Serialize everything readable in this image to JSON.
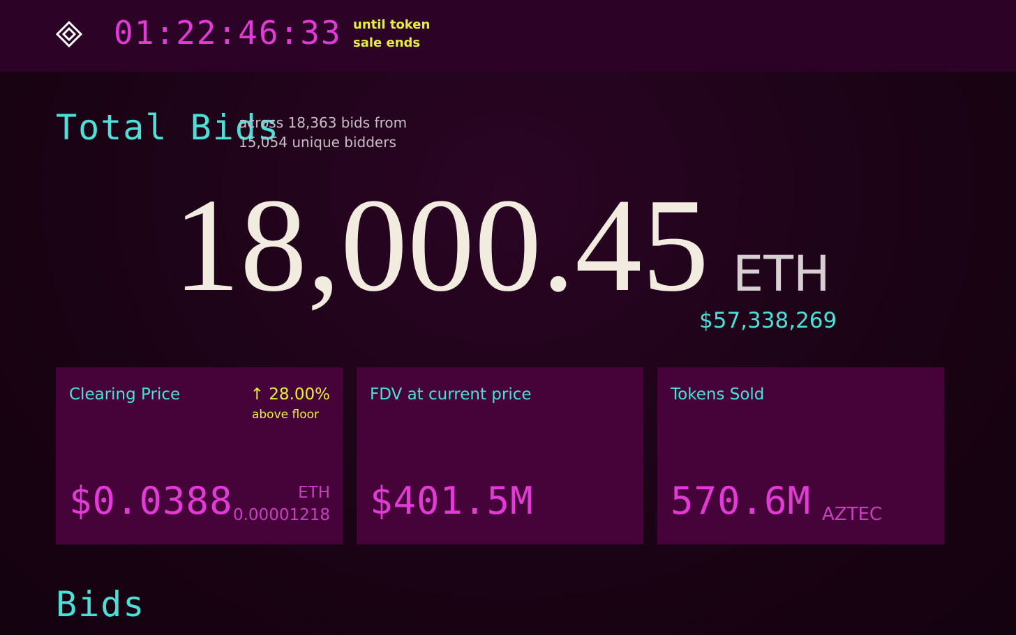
{
  "header": {
    "countdown": "01:22:46:33",
    "countdown_label": "until token sale ends"
  },
  "total_bids": {
    "title": "Total Bids",
    "subtitle": "across 18,363 bids from 15,054 unique bidders",
    "amount": "18,000.45",
    "unit": "ETH",
    "usd": "$57,338,269"
  },
  "cards": [
    {
      "title": "Clearing Price",
      "change": "↑ 28.00%",
      "change_label": "above floor",
      "value": "$0.0388",
      "secondary_unit": "ETH",
      "secondary_value": "0.00001218"
    },
    {
      "title": "FDV at current price",
      "value": "$401.5M"
    },
    {
      "title": "Tokens Sold",
      "value": "570.6M",
      "unit": "AZTEC"
    }
  ],
  "bids_title": "Bids"
}
